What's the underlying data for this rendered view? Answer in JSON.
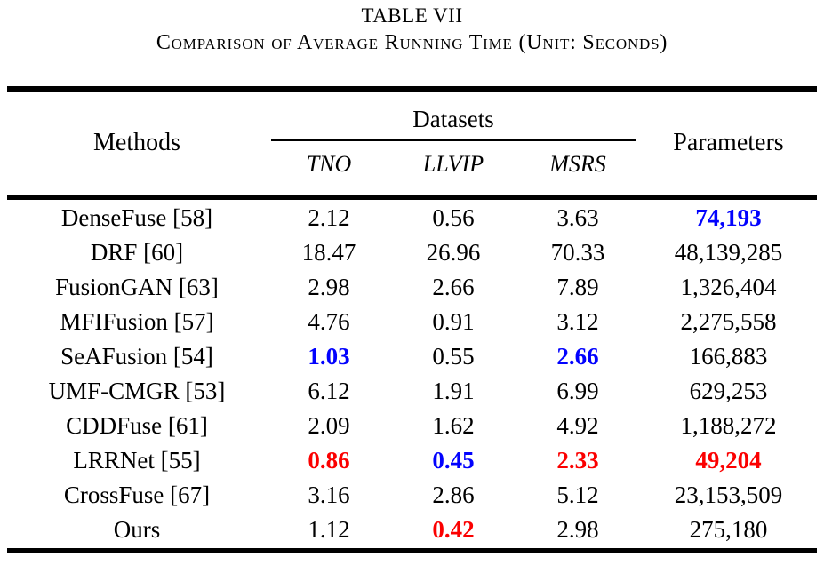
{
  "caption": {
    "title": "TABLE VII",
    "subtitle": "Comparison of Average Running Time (Unit: Seconds)"
  },
  "table": {
    "methods_header": "Methods",
    "col_group_header": "Datasets",
    "parameters_header": "Parameters",
    "dataset_columns": [
      "TNO",
      "LLVIP",
      "MSRS"
    ],
    "rows": [
      {
        "method": "DenseFuse [58]",
        "values": [
          {
            "t": "2.12"
          },
          {
            "t": "0.56"
          },
          {
            "t": "3.63"
          },
          {
            "t": "74,193",
            "s": "second"
          }
        ]
      },
      {
        "method": "DRF [60]",
        "values": [
          {
            "t": "18.47"
          },
          {
            "t": "26.96"
          },
          {
            "t": "70.33"
          },
          {
            "t": "48,139,285"
          }
        ]
      },
      {
        "method": "FusionGAN [63]",
        "values": [
          {
            "t": "2.98"
          },
          {
            "t": "2.66"
          },
          {
            "t": "7.89"
          },
          {
            "t": "1,326,404"
          }
        ]
      },
      {
        "method": "MFIFusion [57]",
        "values": [
          {
            "t": "4.76"
          },
          {
            "t": "0.91"
          },
          {
            "t": "3.12"
          },
          {
            "t": "2,275,558"
          }
        ]
      },
      {
        "method": "SeAFusion [54]",
        "values": [
          {
            "t": "1.03",
            "s": "second"
          },
          {
            "t": "0.55"
          },
          {
            "t": "2.66",
            "s": "second"
          },
          {
            "t": "166,883"
          }
        ]
      },
      {
        "method": "UMF-CMGR [53]",
        "values": [
          {
            "t": "6.12"
          },
          {
            "t": "1.91"
          },
          {
            "t": "6.99"
          },
          {
            "t": "629,253"
          }
        ]
      },
      {
        "method": "CDDFuse [61]",
        "values": [
          {
            "t": "2.09"
          },
          {
            "t": "1.62"
          },
          {
            "t": "4.92"
          },
          {
            "t": "1,188,272"
          }
        ]
      },
      {
        "method": "LRRNet [55]",
        "values": [
          {
            "t": "0.86",
            "s": "best"
          },
          {
            "t": "0.45",
            "s": "second"
          },
          {
            "t": "2.33",
            "s": "best"
          },
          {
            "t": "49,204",
            "s": "best"
          }
        ]
      },
      {
        "method": "CrossFuse [67]",
        "values": [
          {
            "t": "3.16"
          },
          {
            "t": "2.86"
          },
          {
            "t": "5.12"
          },
          {
            "t": "23,153,509"
          }
        ]
      },
      {
        "method": "Ours",
        "values": [
          {
            "t": "1.12"
          },
          {
            "t": "0.42",
            "s": "best"
          },
          {
            "t": "2.98"
          },
          {
            "t": "275,180"
          }
        ]
      }
    ]
  },
  "colors": {
    "best_value": "#fb0000",
    "second_best_value": "#0202fe",
    "text": "#000000",
    "background": "#ffffff"
  }
}
